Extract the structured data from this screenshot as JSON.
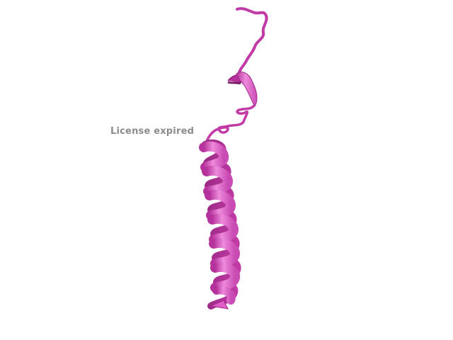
{
  "viewer": {
    "watermark": "License expired",
    "render_style": "cartoon",
    "colors": {
      "background": "#ffffff",
      "ribbon": "#e05cc8",
      "ribbon_light": "#ee8adb",
      "ribbon_dark": "#b5329c",
      "coil": "#c23aa6",
      "watermark": "#8c8c8c"
    },
    "molecule": {
      "secondary_structures": [
        "coil",
        "short-helix",
        "coil",
        "long-helix"
      ]
    }
  }
}
